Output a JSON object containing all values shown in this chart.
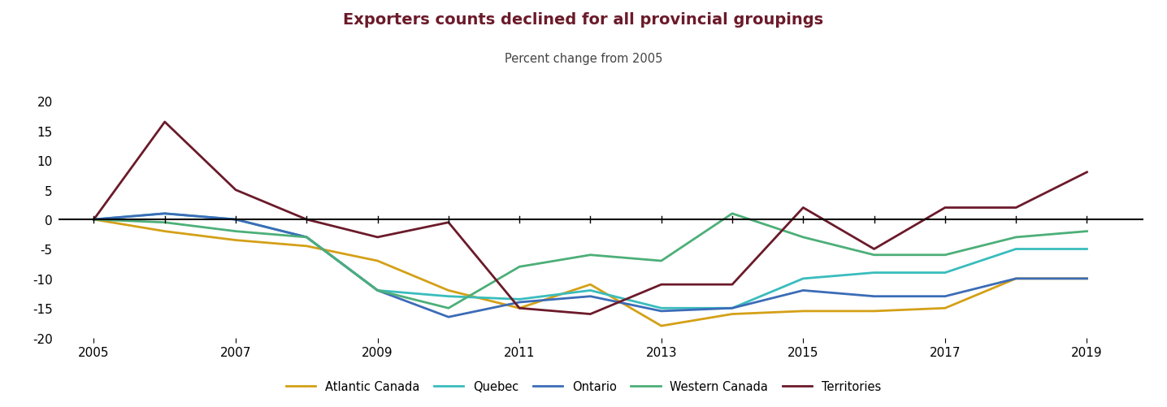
{
  "title": "Exporters counts declined for all provincial groupings",
  "subtitle": "Percent change from 2005",
  "title_color": "#6B1A2A",
  "subtitle_color": "#444444",
  "years": [
    2005,
    2006,
    2007,
    2008,
    2009,
    2010,
    2011,
    2012,
    2013,
    2014,
    2015,
    2016,
    2017,
    2018,
    2019
  ],
  "series": {
    "Atlantic Canada": {
      "color": "#D4A017",
      "values": [
        0,
        -2,
        -3.5,
        -4.5,
        -7,
        -12,
        -15,
        -11,
        -18,
        -16,
        -15.5,
        -15.5,
        -15,
        -10,
        -10
      ]
    },
    "Quebec": {
      "color": "#3ABCBD",
      "values": [
        0,
        1,
        0,
        -3,
        -12,
        -13,
        -13.5,
        -12,
        -15,
        -15,
        -10,
        -9,
        -9,
        -5,
        -5
      ]
    },
    "Ontario": {
      "color": "#3B6CB7",
      "values": [
        0,
        1,
        0,
        -3,
        -12,
        -16.5,
        -14,
        -13,
        -15.5,
        -15,
        -12,
        -13,
        -13,
        -10,
        -10
      ]
    },
    "Western Canada": {
      "color": "#4CAF78",
      "values": [
        0,
        -0.5,
        -2,
        -3,
        -12,
        -15,
        -8,
        -6,
        -7,
        1,
        -3,
        -6,
        -6,
        -3,
        -2
      ]
    },
    "Territories": {
      "color": "#6B1A2A",
      "values": [
        0,
        16.5,
        5,
        0,
        -3,
        -0.5,
        -15,
        -16,
        -11,
        -11,
        2,
        -5,
        2,
        2,
        8
      ]
    }
  },
  "ylim": [
    -20,
    20
  ],
  "yticks": [
    -20,
    -15,
    -10,
    -5,
    0,
    5,
    10,
    15,
    20
  ],
  "xticks": [
    2005,
    2007,
    2009,
    2011,
    2013,
    2015,
    2017,
    2019
  ],
  "legend_order": [
    "Atlantic Canada",
    "Quebec",
    "Ontario",
    "Western Canada",
    "Territories"
  ],
  "background_color": "#FFFFFF"
}
